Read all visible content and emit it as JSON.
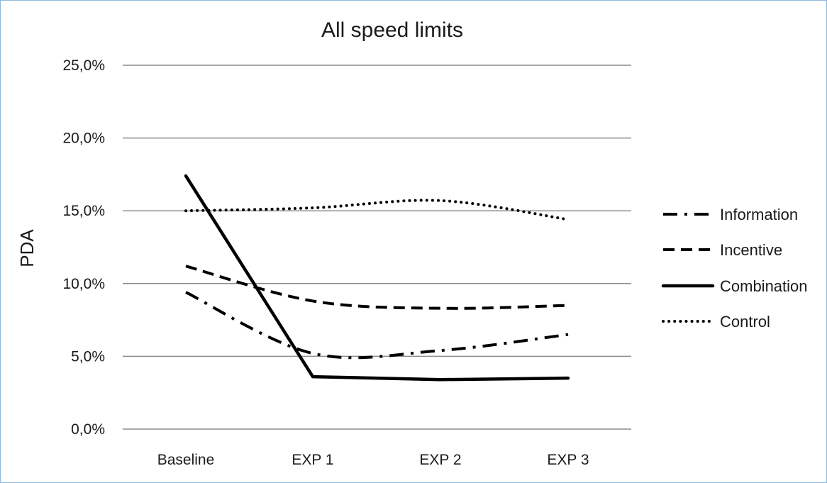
{
  "chart_data": {
    "type": "line",
    "title": "All speed limits",
    "xlabel": "",
    "ylabel": "PDA",
    "categories": [
      "Baseline",
      "EXP 1",
      "EXP 2",
      "EXP 3"
    ],
    "ylim": [
      0,
      25
    ],
    "yticks": [
      0,
      5,
      10,
      15,
      20,
      25
    ],
    "ytick_labels": [
      "0,0%",
      "5,0%",
      "10,0%",
      "15,0%",
      "20,0%",
      "25,0%"
    ],
    "grid": true,
    "legend": "right",
    "series": [
      {
        "name": "Information",
        "values": [
          9.4,
          5.2,
          5.4,
          6.5
        ],
        "style": "dash-dot"
      },
      {
        "name": "Incentive",
        "values": [
          11.2,
          8.8,
          8.3,
          8.5
        ],
        "style": "dashed"
      },
      {
        "name": "Combination",
        "values": [
          17.4,
          3.6,
          3.4,
          3.5
        ],
        "style": "solid"
      },
      {
        "name": "Control",
        "values": [
          15.0,
          15.2,
          15.7,
          14.4
        ],
        "style": "dotted"
      }
    ],
    "colors": {
      "line": "#000000",
      "grid": "#8c8c8c"
    }
  }
}
